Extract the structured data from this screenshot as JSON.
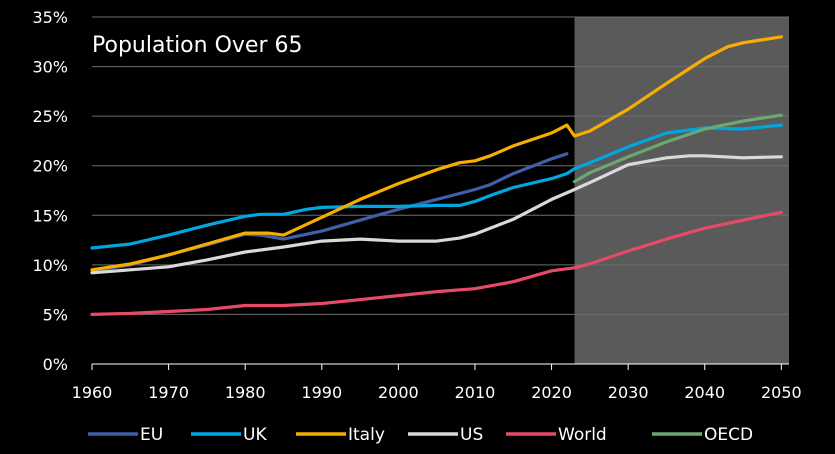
{
  "chart_data": {
    "type": "line",
    "title": "Population Over 65",
    "xlabel": "",
    "ylabel": "",
    "xlim": [
      1960,
      2051
    ],
    "ylim": [
      0,
      35
    ],
    "x_ticks": [
      "1960",
      "1970",
      "1980",
      "1990",
      "2000",
      "2010",
      "2020",
      "2030",
      "2040",
      "2050"
    ],
    "y_ticks": [
      "0%",
      "5%",
      "10%",
      "15%",
      "20%",
      "25%",
      "30%",
      "35%"
    ],
    "grid": "horizontal",
    "projection_shade": {
      "from": 2023,
      "to": 2051,
      "color": "#5a5a5a"
    },
    "legend_position": "bottom",
    "series": [
      {
        "name": "EU",
        "color": "#3f5fa8",
        "points": [
          [
            1960,
            9.4
          ],
          [
            1965,
            10.0
          ],
          [
            1970,
            11.0
          ],
          [
            1975,
            12.0
          ],
          [
            1980,
            13.1
          ],
          [
            1982,
            13.0
          ],
          [
            1985,
            12.6
          ],
          [
            1990,
            13.4
          ],
          [
            1995,
            14.5
          ],
          [
            2000,
            15.6
          ],
          [
            2005,
            16.6
          ],
          [
            2010,
            17.6
          ],
          [
            2012,
            18.1
          ],
          [
            2015,
            19.2
          ],
          [
            2020,
            20.7
          ],
          [
            2022,
            21.2
          ]
        ]
      },
      {
        "name": "UK",
        "color": "#00a6de",
        "points": [
          [
            1960,
            11.7
          ],
          [
            1965,
            12.1
          ],
          [
            1970,
            13.0
          ],
          [
            1975,
            14.0
          ],
          [
            1980,
            14.9
          ],
          [
            1982,
            15.1
          ],
          [
            1985,
            15.1
          ],
          [
            1988,
            15.6
          ],
          [
            1990,
            15.8
          ],
          [
            1995,
            15.9
          ],
          [
            2000,
            15.9
          ],
          [
            2005,
            16.0
          ],
          [
            2008,
            16.0
          ],
          [
            2010,
            16.4
          ],
          [
            2012,
            17.0
          ],
          [
            2015,
            17.8
          ],
          [
            2020,
            18.7
          ],
          [
            2022,
            19.2
          ],
          [
            2023,
            19.7
          ],
          [
            2025,
            20.3
          ],
          [
            2030,
            21.9
          ],
          [
            2035,
            23.3
          ],
          [
            2040,
            23.8
          ],
          [
            2045,
            23.7
          ],
          [
            2050,
            24.1
          ]
        ]
      },
      {
        "name": "Italy",
        "color": "#f7ae00",
        "points": [
          [
            1960,
            9.5
          ],
          [
            1965,
            10.1
          ],
          [
            1970,
            11.0
          ],
          [
            1975,
            12.1
          ],
          [
            1980,
            13.2
          ],
          [
            1983,
            13.2
          ],
          [
            1985,
            13.0
          ],
          [
            1990,
            14.8
          ],
          [
            1995,
            16.6
          ],
          [
            2000,
            18.2
          ],
          [
            2005,
            19.6
          ],
          [
            2008,
            20.3
          ],
          [
            2010,
            20.5
          ],
          [
            2012,
            21.0
          ],
          [
            2015,
            22.0
          ],
          [
            2020,
            23.3
          ],
          [
            2022,
            24.1
          ],
          [
            2023,
            23.0
          ],
          [
            2025,
            23.5
          ],
          [
            2030,
            25.7
          ],
          [
            2035,
            28.3
          ],
          [
            2040,
            30.8
          ],
          [
            2043,
            32.0
          ],
          [
            2045,
            32.4
          ],
          [
            2050,
            33.0
          ]
        ]
      },
      {
        "name": "US",
        "color": "#d9d9d9",
        "points": [
          [
            1960,
            9.2
          ],
          [
            1965,
            9.5
          ],
          [
            1970,
            9.8
          ],
          [
            1975,
            10.5
          ],
          [
            1980,
            11.3
          ],
          [
            1985,
            11.8
          ],
          [
            1990,
            12.4
          ],
          [
            1995,
            12.6
          ],
          [
            2000,
            12.4
          ],
          [
            2005,
            12.4
          ],
          [
            2008,
            12.7
          ],
          [
            2010,
            13.1
          ],
          [
            2015,
            14.6
          ],
          [
            2020,
            16.6
          ],
          [
            2023,
            17.6
          ],
          [
            2025,
            18.3
          ],
          [
            2030,
            20.1
          ],
          [
            2035,
            20.8
          ],
          [
            2038,
            21.0
          ],
          [
            2040,
            21.0
          ],
          [
            2045,
            20.8
          ],
          [
            2050,
            20.9
          ]
        ]
      },
      {
        "name": "World",
        "color": "#e64a67",
        "points": [
          [
            1960,
            5.0
          ],
          [
            1965,
            5.1
          ],
          [
            1970,
            5.3
          ],
          [
            1975,
            5.5
          ],
          [
            1980,
            5.9
          ],
          [
            1985,
            5.9
          ],
          [
            1990,
            6.1
          ],
          [
            1995,
            6.5
          ],
          [
            2000,
            6.9
          ],
          [
            2005,
            7.3
          ],
          [
            2010,
            7.6
          ],
          [
            2015,
            8.3
          ],
          [
            2020,
            9.4
          ],
          [
            2023,
            9.7
          ],
          [
            2025,
            10.1
          ],
          [
            2030,
            11.4
          ],
          [
            2035,
            12.6
          ],
          [
            2040,
            13.7
          ],
          [
            2045,
            14.5
          ],
          [
            2050,
            15.3
          ]
        ]
      },
      {
        "name": "OECD",
        "color": "#6aa972",
        "points": [
          [
            2023,
            18.4
          ],
          [
            2025,
            19.3
          ],
          [
            2030,
            20.9
          ],
          [
            2035,
            22.4
          ],
          [
            2040,
            23.7
          ],
          [
            2045,
            24.5
          ],
          [
            2050,
            25.1
          ]
        ]
      }
    ]
  }
}
